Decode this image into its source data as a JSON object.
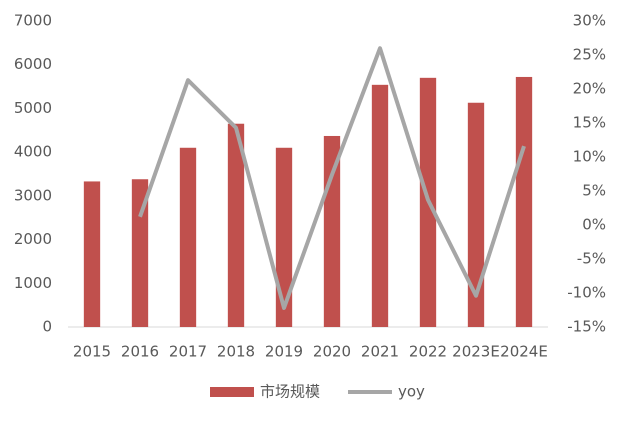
{
  "chart_data": {
    "type": "bar",
    "categories": [
      "2015",
      "2016",
      "2017",
      "2018",
      "2019",
      "2020",
      "2021",
      "2022",
      "2023E",
      "2024E"
    ],
    "series": [
      {
        "name": "市场规模",
        "type": "bar",
        "color": "#c0504d",
        "values": [
          3330,
          3380,
          4100,
          4650,
          4100,
          4370,
          5540,
          5700,
          5130,
          5720
        ]
      },
      {
        "name": "yoy",
        "type": "line",
        "axis": "y2",
        "color": "#a6a6a6",
        "values": [
          null,
          1.2,
          21.3,
          14.3,
          -12.2,
          7.4,
          26,
          3.7,
          -10.4,
          11.6
        ]
      }
    ],
    "ylim": [
      0,
      7000
    ],
    "yticks": [
      0,
      1000,
      2000,
      3000,
      4000,
      5000,
      6000,
      7000
    ],
    "y2lim": [
      -15,
      30
    ],
    "y2ticks": [
      {
        "value": -15,
        "label": "-15%"
      },
      {
        "value": -10,
        "label": "-10%"
      },
      {
        "value": -5,
        "label": "-5%"
      },
      {
        "value": 0,
        "label": "0%"
      },
      {
        "value": 5,
        "label": "5%"
      },
      {
        "value": 10,
        "label": "10%"
      },
      {
        "value": 15,
        "label": "15%"
      },
      {
        "value": 20,
        "label": "20%"
      },
      {
        "value": 25,
        "label": "25%"
      },
      {
        "value": 30,
        "label": "30%"
      }
    ],
    "legend": "bottom"
  }
}
